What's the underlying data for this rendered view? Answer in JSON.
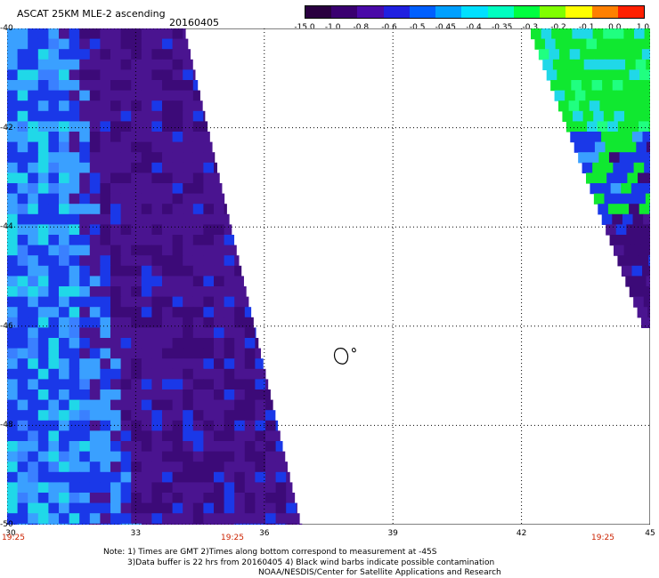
{
  "header": {
    "title": "ASCAT 25KM MLE-2 ascending",
    "date": "20160405"
  },
  "colorbar": {
    "labels": [
      "-15.0",
      "-1.0",
      "-0.8",
      "-0.6",
      "-0.5",
      "-0.45",
      "-0.4",
      "-0.35",
      "-0.3",
      "-0.2",
      "-0.1",
      "0.0",
      "1.0"
    ],
    "colors": [
      "#2a0040",
      "#3a0070",
      "#4a0aa8",
      "#2020e0",
      "#0060ff",
      "#00a0ff",
      "#00e0ff",
      "#00ffc0",
      "#00ff40",
      "#80ff00",
      "#ffff00",
      "#ff8000",
      "#ff2000"
    ]
  },
  "map": {
    "lat_labels": [
      "-40",
      "-42",
      "-44",
      "-46",
      "-48",
      "-50"
    ],
    "lon_labels": [
      "30",
      "33",
      "36",
      "39",
      "42",
      "45"
    ],
    "times": [
      "19:25",
      "19:25",
      "19:25"
    ],
    "colors": {
      "deep_purple": "#3c0a78",
      "purple": "#4a1490",
      "blue": "#1a38e8",
      "light_blue": "#3aa0ff",
      "cyan": "#20d8e8",
      "green": "#10e830",
      "island_outline": "#000000"
    }
  },
  "notes": {
    "line1": "Note: 1) Times are GMT 2)Times along bottom correspond to measurement at -45S",
    "line2": "3)Data buffer is 22 hrs from 20160405 4) Black wind barbs indicate possible contamination",
    "line3": "NOAA/NESDIS/Center for Satellite Applications and Research"
  }
}
